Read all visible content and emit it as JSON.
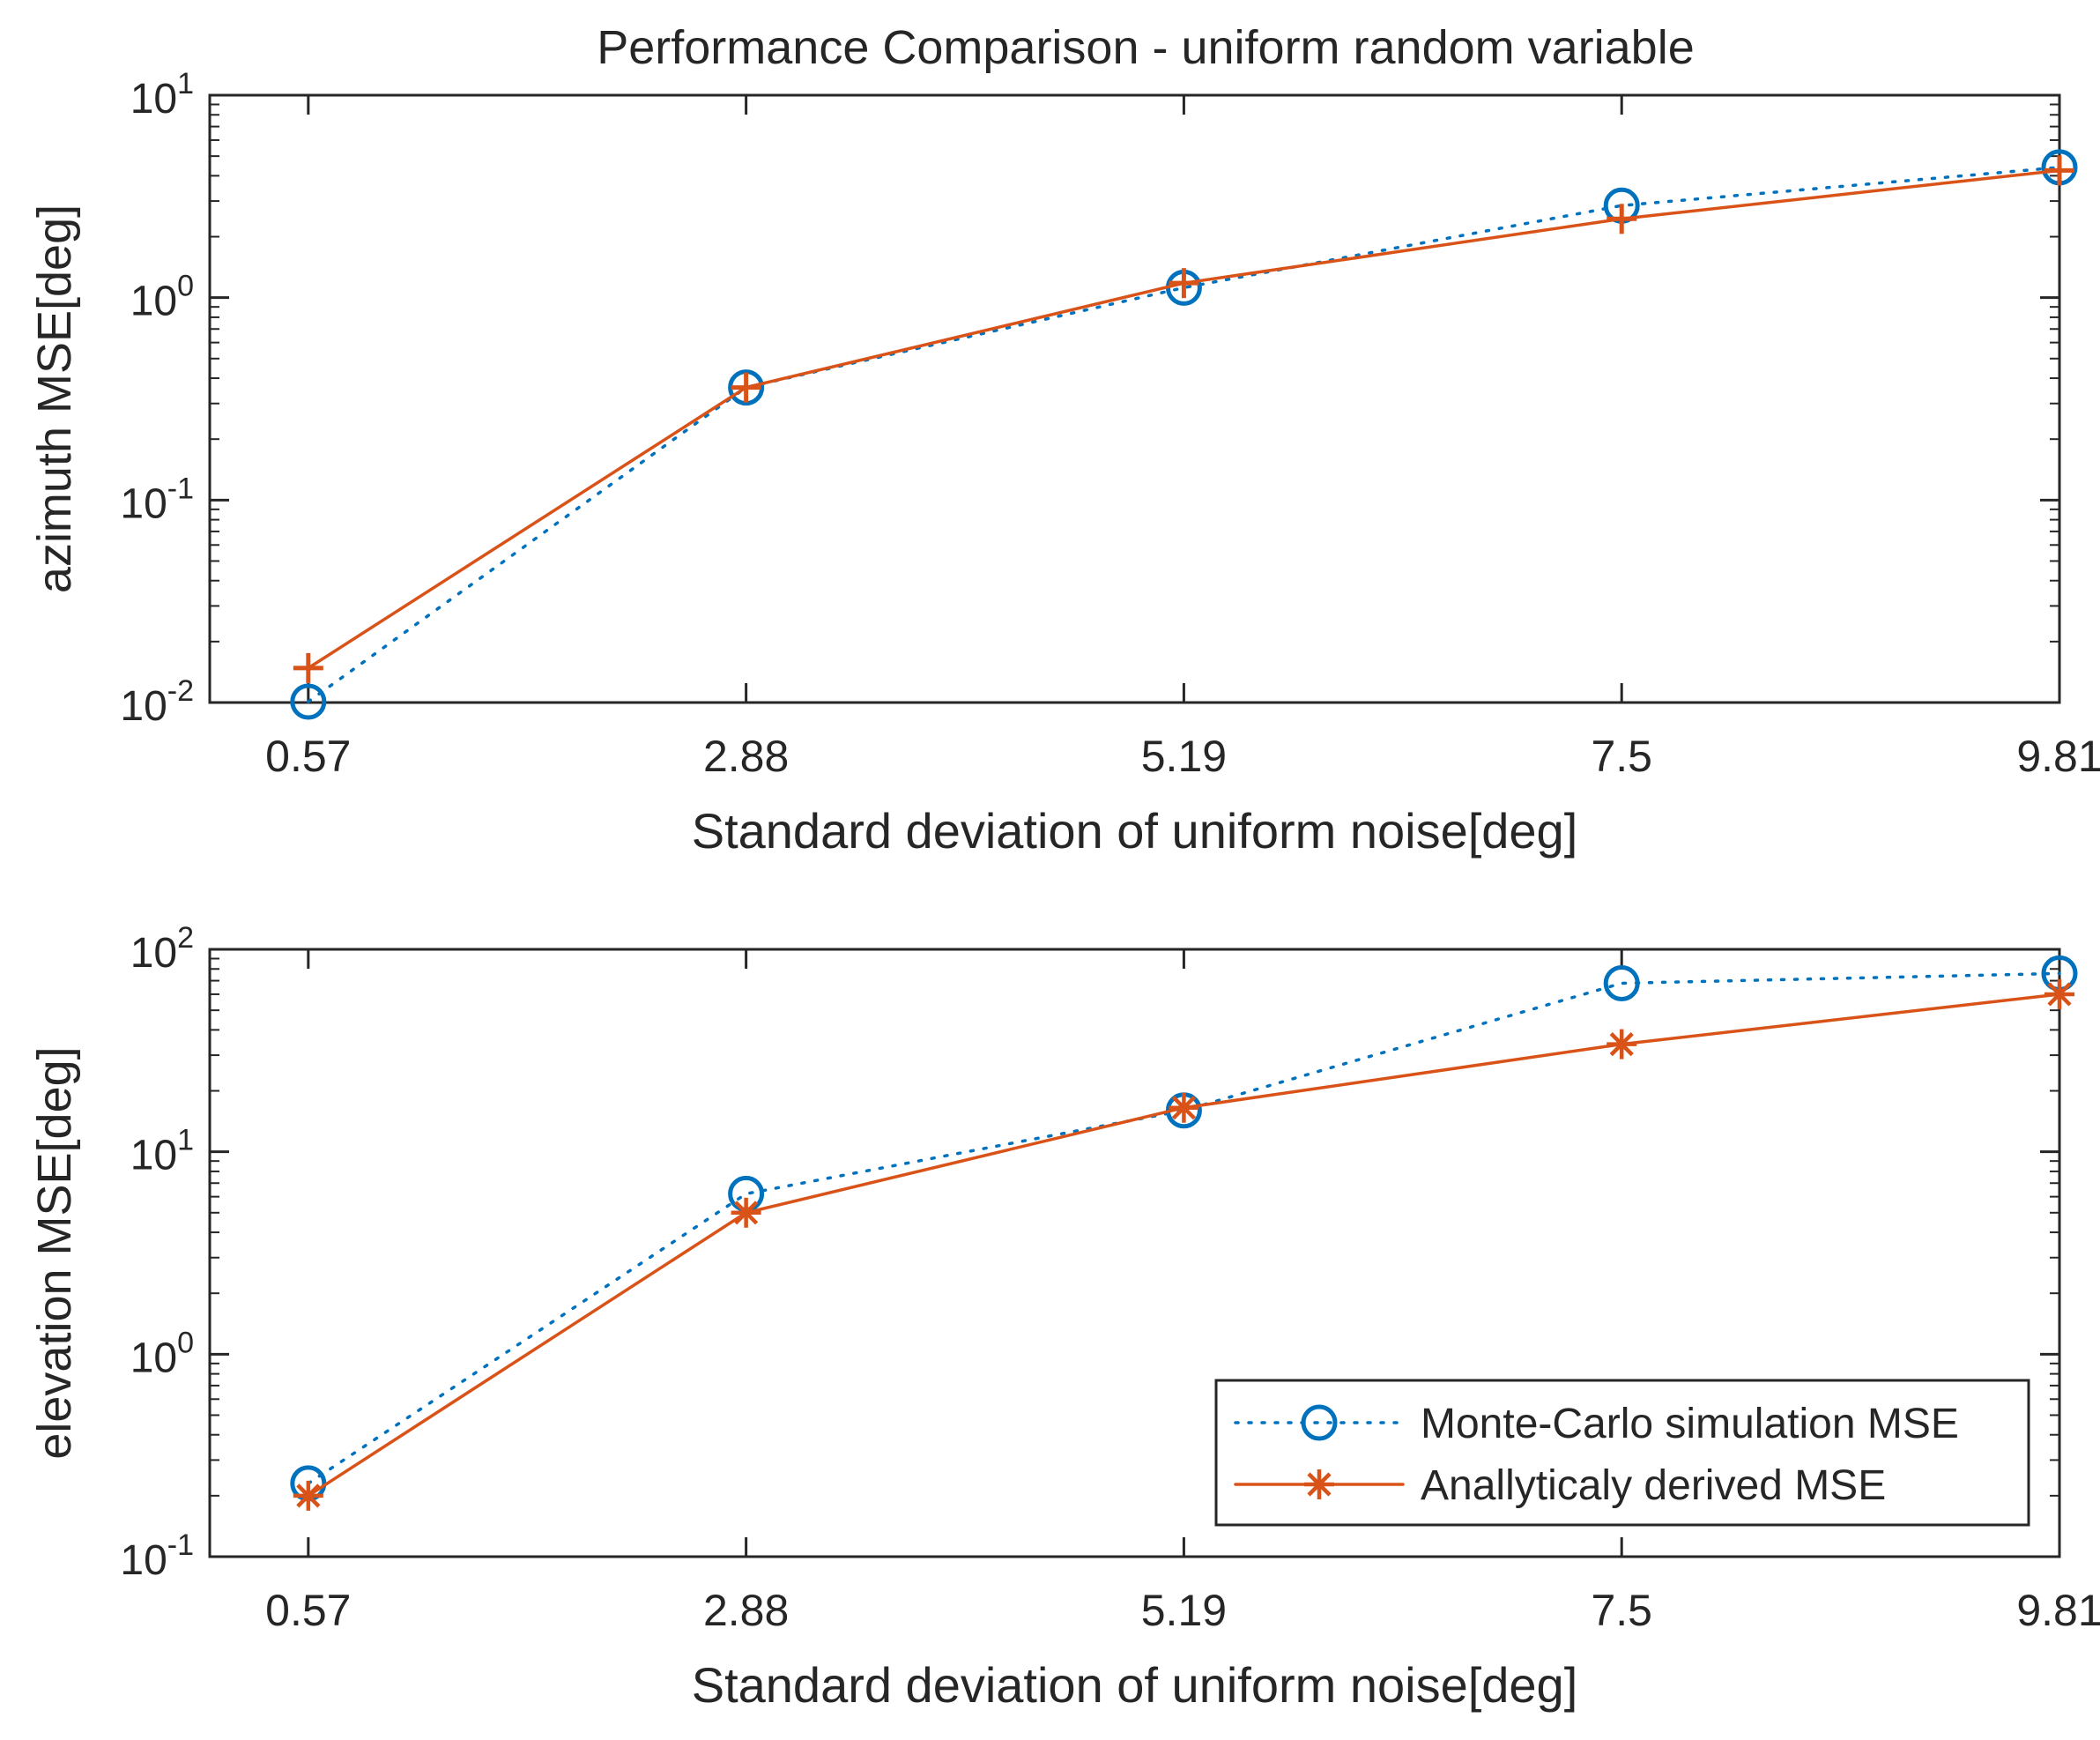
{
  "title": "Performance Comparison  - uniform random variable",
  "colors": {
    "monte_carlo": "#0072BD",
    "analytic": "#D95319",
    "axis": "#262626",
    "background": "#ffffff"
  },
  "legend": {
    "entries": [
      "Monte-Carlo simulation MSE",
      "Anallyticaly derived MSE"
    ],
    "location": "bottom-right of lower plot"
  },
  "chart_data": [
    {
      "type": "line",
      "title": "Performance Comparison  - uniform random variable",
      "xlabel": "Standard deviation of uniform noise[deg]",
      "ylabel": "azimuth MSE[deg]",
      "yscale": "log",
      "ylim": [
        0.01,
        10
      ],
      "xlim": [
        0.05,
        9.81
      ],
      "categories": [
        "0.57",
        "2.88",
        "5.19",
        "7.5",
        "9.81"
      ],
      "x": [
        0.57,
        2.88,
        5.19,
        7.5,
        9.81
      ],
      "yticks": [
        {
          "value": 10,
          "base": "10",
          "exp": "1"
        },
        {
          "value": 1,
          "base": "10",
          "exp": "0"
        },
        {
          "value": 0.1,
          "base": "10",
          "exp": "-1"
        },
        {
          "value": 0.01,
          "base": "10",
          "exp": "-2"
        }
      ],
      "series": [
        {
          "name": "Monte-Carlo simulation MSE",
          "marker": "circle",
          "line": "dotted",
          "values": [
            0.0101,
            0.36,
            1.12,
            2.85,
            4.4
          ]
        },
        {
          "name": "Anallyticaly derived MSE",
          "marker": "plus",
          "line": "solid",
          "values": [
            0.0148,
            0.36,
            1.18,
            2.45,
            4.25
          ]
        }
      ]
    },
    {
      "type": "line",
      "title": "",
      "xlabel": "Standard deviation of uniform noise[deg]",
      "ylabel": "elevation MSE[deg]",
      "yscale": "log",
      "ylim": [
        0.1,
        100
      ],
      "xlim": [
        0.05,
        9.81
      ],
      "categories": [
        "0.57",
        "2.88",
        "5.19",
        "7.5",
        "9.81"
      ],
      "x": [
        0.57,
        2.88,
        5.19,
        7.5,
        9.81
      ],
      "yticks": [
        {
          "value": 100,
          "base": "10",
          "exp": "2"
        },
        {
          "value": 10,
          "base": "10",
          "exp": "1"
        },
        {
          "value": 1,
          "base": "10",
          "exp": "0"
        },
        {
          "value": 0.1,
          "base": "10",
          "exp": "-1"
        }
      ],
      "series": [
        {
          "name": "Monte-Carlo simulation MSE",
          "marker": "circle",
          "line": "dotted",
          "values": [
            0.23,
            6.2,
            16,
            68,
            76
          ]
        },
        {
          "name": "Anallyticaly derived MSE",
          "marker": "asterisk",
          "line": "solid",
          "values": [
            0.2,
            5.0,
            16.5,
            34,
            60
          ]
        }
      ]
    }
  ]
}
